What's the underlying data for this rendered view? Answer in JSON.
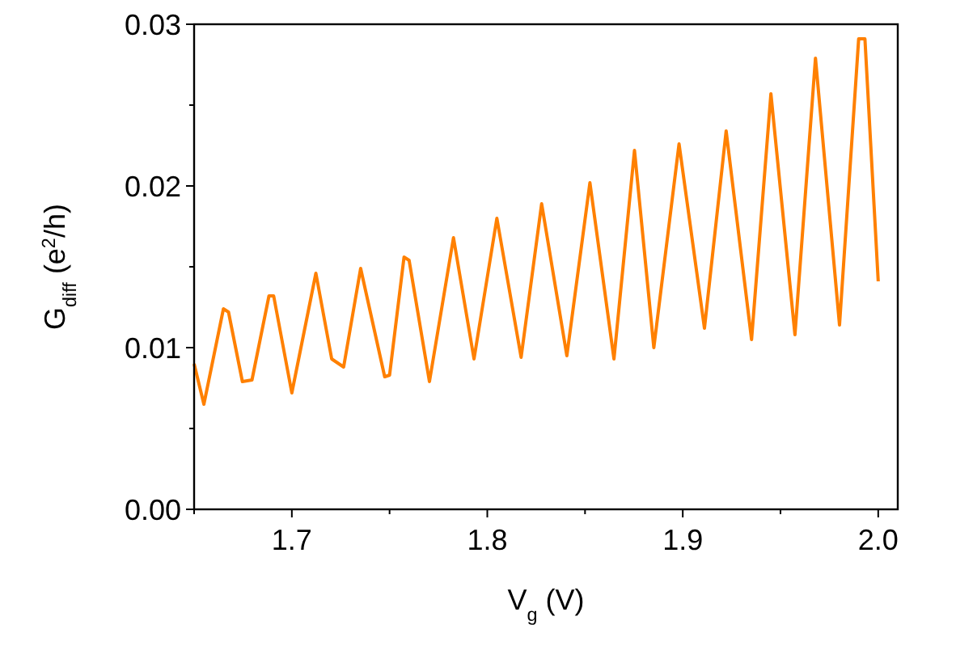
{
  "chart_data": {
    "type": "line",
    "xlabel": "V$_{g}$ (V)",
    "ylabel": "G$_{diff}$ (e$^{2}$/h)",
    "xlim": [
      1.65,
      2.01
    ],
    "ylim": [
      0,
      0.03
    ],
    "xticks": [
      {
        "value": 1.65,
        "label": null
      },
      1.7,
      {
        "value": 1.75,
        "label": null
      },
      1.8,
      {
        "value": 1.85,
        "label": null
      },
      1.9,
      {
        "value": 1.95,
        "label": null
      },
      {
        "value": 2.0,
        "label": "2.0"
      }
    ],
    "yticks": [
      {
        "value": 0,
        "label": "0.00"
      },
      {
        "value": 0.005,
        "label": null
      },
      {
        "value": 0.01,
        "label": "0.01"
      },
      {
        "value": 0.015,
        "label": null
      },
      {
        "value": 0.02,
        "label": "0.02"
      },
      {
        "value": 0.025,
        "label": null
      },
      {
        "value": 0.03,
        "label": "0.03"
      }
    ],
    "grid": false,
    "line_style": "solid",
    "marker": "none",
    "series": [
      {
        "color": "#ff8000",
        "x": [
          1.65,
          1.655,
          1.665,
          1.6676,
          1.6747,
          1.6796,
          1.6883,
          1.6907,
          1.7,
          1.7123,
          1.7204,
          1.7265,
          1.7352,
          1.7475,
          1.75,
          1.7574,
          1.76,
          1.7704,
          1.7827,
          1.7932,
          1.8049,
          1.8173,
          1.8278,
          1.8407,
          1.8525,
          1.8648,
          1.8753,
          1.8852,
          1.8981,
          1.9111,
          1.9222,
          1.9352,
          1.9451,
          1.9574,
          1.9679,
          1.9802,
          1.99,
          1.9932,
          2.0
        ],
        "values": [
          0.009,
          0.0065,
          0.0124,
          0.0122,
          0.0079,
          0.008,
          0.0132,
          0.0132,
          0.0072,
          0.0146,
          0.0093,
          0.0088,
          0.0149,
          0.0082,
          0.0083,
          0.0156,
          0.0154,
          0.0079,
          0.0168,
          0.0093,
          0.018,
          0.0094,
          0.0189,
          0.0095,
          0.0202,
          0.0093,
          0.0222,
          0.01,
          0.0226,
          0.0112,
          0.0234,
          0.0105,
          0.0257,
          0.0108,
          0.0279,
          0.0114,
          0.0291,
          0.0291,
          0.0141
        ]
      }
    ]
  }
}
